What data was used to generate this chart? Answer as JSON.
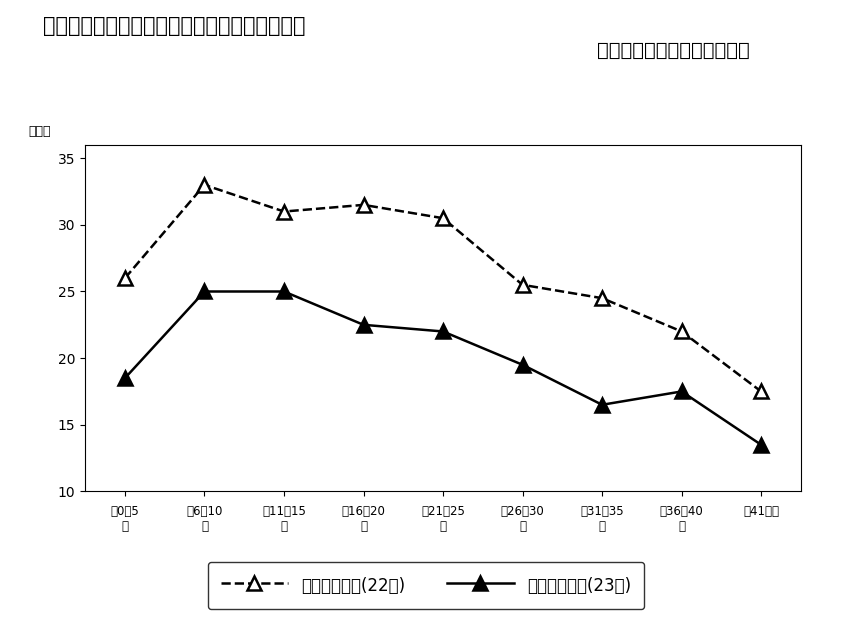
{
  "title_line1": "図表５－２　中古戸建住宅の対新規登録成約率",
  "title_line2": "（成約件数／新規登録件数）",
  "ylabel": "（％）",
  "x_labels_line1": [
    "築0～5",
    "築6～10",
    "築11～15",
    "築16～20",
    "築21～25",
    "築26～30",
    "築31～35",
    "築36～40",
    "築41年～"
  ],
  "x_labels_line2": [
    "年",
    "年",
    "年",
    "年",
    "年",
    "年",
    "年",
    "年",
    ""
  ],
  "series_22": [
    26.0,
    33.0,
    31.0,
    31.5,
    30.5,
    25.5,
    24.5,
    22.0,
    17.5
  ],
  "series_23": [
    18.5,
    25.0,
    25.0,
    22.5,
    22.0,
    19.5,
    16.5,
    17.5,
    13.5
  ],
  "ylim": [
    10,
    36
  ],
  "yticks": [
    10,
    15,
    20,
    25,
    30,
    35
  ],
  "legend_22": "中古戸建住宅(22年)",
  "legend_23": "中古戸建住宅(23年)",
  "background_color": "#ffffff",
  "line_color": "#000000"
}
